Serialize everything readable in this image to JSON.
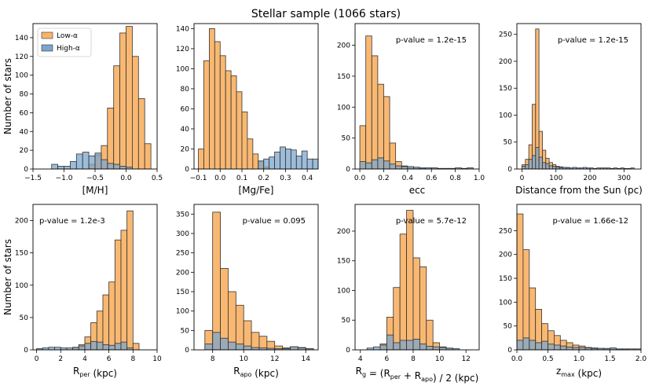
{
  "figure_title": "Stellar sample (1066 stars)",
  "colors": {
    "low": "#f9b46a",
    "high": "#7ba6cc",
    "edge": "#333333",
    "overlap": "#7b8d86"
  },
  "legend": {
    "low_label": "Low-α",
    "high_label": "High-α"
  },
  "chart_data": [
    {
      "type": "bar",
      "xlabel": "[M/H]",
      "ylabel": "Number of stars",
      "xlim": [
        -1.5,
        0.5
      ],
      "ylim": [
        0,
        155
      ],
      "xticks": [
        -1.5,
        -1.0,
        -0.5,
        0.0,
        0.5
      ],
      "xtick_labels": [
        "−1.5",
        "−1.0",
        "−0.5",
        "0.0",
        "0.5"
      ],
      "yticks": [
        0,
        20,
        40,
        60,
        80,
        100,
        120,
        140
      ],
      "yticklabels": [
        "0",
        "20",
        "40",
        "60",
        "80",
        "100",
        "120",
        "140"
      ],
      "bin_width": 0.1,
      "series": [
        {
          "name": "Low-α",
          "bin_starts": [
            -0.9,
            -0.8,
            -0.7,
            -0.6,
            -0.5,
            -0.4,
            -0.3,
            -0.2,
            -0.1,
            0.0,
            0.1,
            0.2,
            0.3
          ],
          "values": [
            0,
            0,
            0,
            5,
            15,
            25,
            65,
            110,
            145,
            152,
            120,
            75,
            27
          ]
        },
        {
          "name": "High-α",
          "bin_starts": [
            -1.2,
            -1.1,
            -1.0,
            -0.9,
            -0.8,
            -0.7,
            -0.6,
            -0.5,
            -0.4,
            -0.3,
            -0.2,
            -0.1,
            0.0
          ],
          "values": [
            5,
            3,
            3,
            8,
            16,
            18,
            14,
            17,
            10,
            6,
            5,
            3,
            2
          ]
        }
      ]
    },
    {
      "type": "bar",
      "xlabel": "[Mg/Fe]",
      "ylabel": "",
      "xlim": [
        -0.12,
        0.45
      ],
      "ylim": [
        0,
        145
      ],
      "xticks": [
        -0.1,
        0.0,
        0.1,
        0.2,
        0.3,
        0.4
      ],
      "xtick_labels": [
        "−0.1",
        "0.0",
        "0.1",
        "0.2",
        "0.3",
        "0.4"
      ],
      "yticks": [
        0,
        20,
        40,
        60,
        80,
        100,
        120,
        140
      ],
      "yticklabels": [
        "0",
        "20",
        "40",
        "60",
        "80",
        "100",
        "120",
        "140"
      ],
      "bin_width": 0.025,
      "series": [
        {
          "name": "Low-α",
          "bin_starts": [
            -0.1,
            -0.075,
            -0.05,
            -0.025,
            0.0,
            0.025,
            0.05,
            0.075,
            0.1,
            0.125,
            0.15,
            0.175,
            0.2
          ],
          "values": [
            20,
            108,
            140,
            127,
            113,
            98,
            93,
            77,
            57,
            30,
            15,
            8,
            2
          ]
        },
        {
          "name": "High-α",
          "bin_starts": [
            0.175,
            0.2,
            0.225,
            0.25,
            0.275,
            0.3,
            0.325,
            0.35,
            0.375,
            0.4,
            0.425
          ],
          "values": [
            8,
            10,
            12,
            17,
            22,
            20,
            19,
            13,
            18,
            10,
            10
          ]
        }
      ]
    },
    {
      "type": "bar",
      "xlabel": "ecc",
      "ylabel": "",
      "xlim": [
        -0.04,
        1.0
      ],
      "ylim": [
        0,
        235
      ],
      "annotation": "p-value = 1.2e-15",
      "xticks": [
        0.0,
        0.2,
        0.4,
        0.6,
        0.8,
        1.0
      ],
      "xtick_labels": [
        "0.0",
        "0.2",
        "0.4",
        "0.6",
        "0.8",
        "1.0"
      ],
      "yticks": [
        0,
        50,
        100,
        150,
        200
      ],
      "yticklabels": [
        "0",
        "50",
        "100",
        "150",
        "200"
      ],
      "bin_width": 0.05,
      "series": [
        {
          "name": "Low-α",
          "bin_starts": [
            0.0,
            0.05,
            0.1,
            0.15,
            0.2,
            0.25,
            0.3,
            0.35,
            0.4,
            0.45,
            0.5
          ],
          "values": [
            70,
            215,
            183,
            137,
            117,
            42,
            12,
            5,
            2,
            1,
            1
          ]
        },
        {
          "name": "High-α",
          "bin_starts": [
            0.0,
            0.05,
            0.1,
            0.15,
            0.2,
            0.25,
            0.3,
            0.35,
            0.4,
            0.45,
            0.5,
            0.55,
            0.6,
            0.65,
            0.7,
            0.75,
            0.8,
            0.85,
            0.9
          ],
          "values": [
            12,
            10,
            15,
            18,
            13,
            8,
            5,
            4,
            4,
            3,
            2,
            2,
            2,
            1,
            1,
            1,
            2,
            1,
            2
          ]
        }
      ]
    },
    {
      "type": "bar",
      "xlabel": "Distance from the Sun (pc)",
      "ylabel": "",
      "xlim": [
        -15,
        350
      ],
      "ylim": [
        0,
        270
      ],
      "annotation": "p-value = 1.2e-15",
      "xticks": [
        0,
        100,
        200,
        300
      ],
      "xtick_labels": [
        "0",
        "100",
        "200",
        "300"
      ],
      "yticks": [
        0,
        50,
        100,
        150,
        200,
        250
      ],
      "yticklabels": [
        "0",
        "50",
        "100",
        "150",
        "200",
        "250"
      ],
      "bin_width": 10,
      "series": [
        {
          "name": "Low-α",
          "bin_starts": [
            0,
            10,
            20,
            30,
            40,
            50,
            60,
            70,
            80,
            90,
            100,
            110,
            120,
            130
          ],
          "values": [
            8,
            18,
            45,
            120,
            260,
            70,
            35,
            20,
            12,
            8,
            5,
            4,
            3,
            2
          ]
        },
        {
          "name": "High-α",
          "bin_starts": [
            0,
            10,
            20,
            30,
            40,
            50,
            60,
            70,
            80,
            90,
            100,
            110,
            120,
            130,
            140,
            150,
            160,
            170,
            180,
            190,
            200,
            210,
            220,
            230,
            240,
            250,
            260,
            270,
            280,
            290,
            300,
            310,
            320
          ],
          "values": [
            5,
            8,
            18,
            25,
            40,
            22,
            12,
            10,
            6,
            5,
            4,
            3,
            3,
            3,
            2,
            3,
            2,
            2,
            3,
            2,
            2,
            1,
            2,
            2,
            2,
            2,
            1,
            2,
            1,
            2,
            1,
            1,
            2
          ]
        }
      ]
    },
    {
      "type": "bar",
      "xlabel": "R_per (kpc)",
      "ylabel": "Number of stars",
      "xlim": [
        -0.3,
        10
      ],
      "ylim": [
        0,
        225
      ],
      "annotation": "p-value = 1.2e-3",
      "xticks": [
        0,
        2,
        4,
        6,
        8,
        10
      ],
      "xtick_labels": [
        "0",
        "2",
        "4",
        "6",
        "8",
        "10"
      ],
      "yticks": [
        0,
        50,
        100,
        150,
        200
      ],
      "yticklabels": [
        "0",
        "50",
        "100",
        "150",
        "200"
      ],
      "bin_width": 0.5,
      "series": [
        {
          "name": "Low-α",
          "bin_starts": [
            3.0,
            3.5,
            4.0,
            4.5,
            5.0,
            5.5,
            6.0,
            6.5,
            7.0,
            7.5,
            8.0
          ],
          "values": [
            3,
            8,
            20,
            42,
            60,
            85,
            105,
            170,
            185,
            215,
            10
          ]
        },
        {
          "name": "High-α",
          "bin_starts": [
            0.0,
            0.5,
            1.0,
            1.5,
            2.0,
            2.5,
            3.0,
            3.5,
            4.0,
            4.5,
            5.0,
            5.5,
            6.0,
            6.5,
            7.0,
            7.5
          ],
          "values": [
            2,
            3,
            4,
            4,
            3,
            3,
            4,
            6,
            10,
            13,
            12,
            8,
            7,
            10,
            12,
            3
          ]
        }
      ]
    },
    {
      "type": "bar",
      "xlabel": "R_apo (kpc)",
      "ylabel": "",
      "xlim": [
        6.8,
        14.8
      ],
      "ylim": [
        0,
        375
      ],
      "annotation": "p-value = 0.095",
      "xticks": [
        8,
        10,
        12,
        14
      ],
      "xtick_labels": [
        "8",
        "10",
        "12",
        "14"
      ],
      "yticks": [
        0,
        50,
        100,
        150,
        200,
        250,
        300,
        350
      ],
      "yticklabels": [
        "0",
        "50",
        "100",
        "150",
        "200",
        "250",
        "300",
        "350"
      ],
      "bin_width": 0.5,
      "series": [
        {
          "name": "Low-α",
          "bin_starts": [
            7.5,
            8.0,
            8.5,
            9.0,
            9.5,
            10.0,
            10.5,
            11.0,
            11.5,
            12.0,
            12.5,
            13.0,
            13.5,
            14.0
          ],
          "values": [
            50,
            355,
            210,
            150,
            115,
            75,
            45,
            35,
            22,
            10,
            5,
            8,
            6,
            3
          ]
        },
        {
          "name": "High-α",
          "bin_starts": [
            7.5,
            8.0,
            8.5,
            9.0,
            9.5,
            10.0,
            10.5,
            11.0,
            11.5,
            12.0,
            12.5,
            13.0,
            13.5,
            14.0
          ],
          "values": [
            15,
            45,
            30,
            20,
            15,
            10,
            6,
            5,
            4,
            3,
            3,
            8,
            5,
            3
          ]
        }
      ]
    },
    {
      "type": "bar",
      "xlabel": "R_g = (R_per + R_apo) / 2 (kpc)",
      "ylabel": "",
      "xlim": [
        3.6,
        13
      ],
      "ylim": [
        0,
        245
      ],
      "annotation": "p-value = 5.7e-12",
      "xticks": [
        4,
        6,
        8,
        10,
        12
      ],
      "xtick_labels": [
        "4",
        "6",
        "8",
        "10",
        "12"
      ],
      "yticks": [
        0,
        50,
        100,
        150,
        200
      ],
      "yticklabels": [
        "0",
        "50",
        "100",
        "150",
        "200"
      ],
      "bin_width": 0.5,
      "series": [
        {
          "name": "Low-α",
          "bin_starts": [
            5.5,
            6.0,
            6.5,
            7.0,
            7.5,
            8.0,
            8.5,
            9.0,
            9.5,
            10.0,
            10.5
          ],
          "values": [
            10,
            55,
            105,
            195,
            235,
            155,
            140,
            50,
            12,
            5,
            2
          ]
        },
        {
          "name": "High-α",
          "bin_starts": [
            4.5,
            5.0,
            5.5,
            6.0,
            6.5,
            7.0,
            7.5,
            8.0,
            8.5,
            9.0,
            9.5,
            10.0,
            10.5,
            11.0
          ],
          "values": [
            3,
            5,
            8,
            25,
            12,
            16,
            16,
            18,
            10,
            6,
            5,
            4,
            3,
            2
          ]
        }
      ]
    },
    {
      "type": "bar",
      "xlabel": "z_max (kpc)",
      "ylabel": "",
      "xlim": [
        0,
        2.0
      ],
      "ylim": [
        0,
        305
      ],
      "annotation": "p-value = 1.66e-12",
      "xticks": [
        0.0,
        0.5,
        1.0,
        1.5,
        2.0
      ],
      "xtick_labels": [
        "0.0",
        "0.5",
        "1.0",
        "1.5",
        "2.0"
      ],
      "yticks": [
        0,
        50,
        100,
        150,
        200,
        250
      ],
      "yticklabels": [
        "0",
        "50",
        "100",
        "150",
        "200",
        "250"
      ],
      "bin_width": 0.1,
      "series": [
        {
          "name": "Low-α",
          "bin_starts": [
            0.0,
            0.1,
            0.2,
            0.3,
            0.4,
            0.5,
            0.6,
            0.7,
            0.8,
            0.9,
            1.0,
            1.1,
            1.2,
            1.3,
            1.4,
            1.5,
            1.6,
            1.7
          ],
          "values": [
            285,
            210,
            130,
            85,
            55,
            40,
            30,
            20,
            15,
            10,
            8,
            5,
            4,
            3,
            2,
            2,
            1,
            1
          ]
        },
        {
          "name": "High-α",
          "bin_starts": [
            0.0,
            0.1,
            0.2,
            0.3,
            0.4,
            0.5,
            0.6,
            0.7,
            0.8,
            0.9,
            1.0,
            1.1,
            1.2,
            1.3,
            1.4,
            1.5,
            1.6,
            1.7,
            1.8,
            1.9
          ],
          "values": [
            20,
            25,
            20,
            15,
            18,
            12,
            10,
            8,
            6,
            5,
            5,
            4,
            3,
            3,
            3,
            4,
            2,
            2,
            2,
            2
          ]
        }
      ]
    }
  ]
}
